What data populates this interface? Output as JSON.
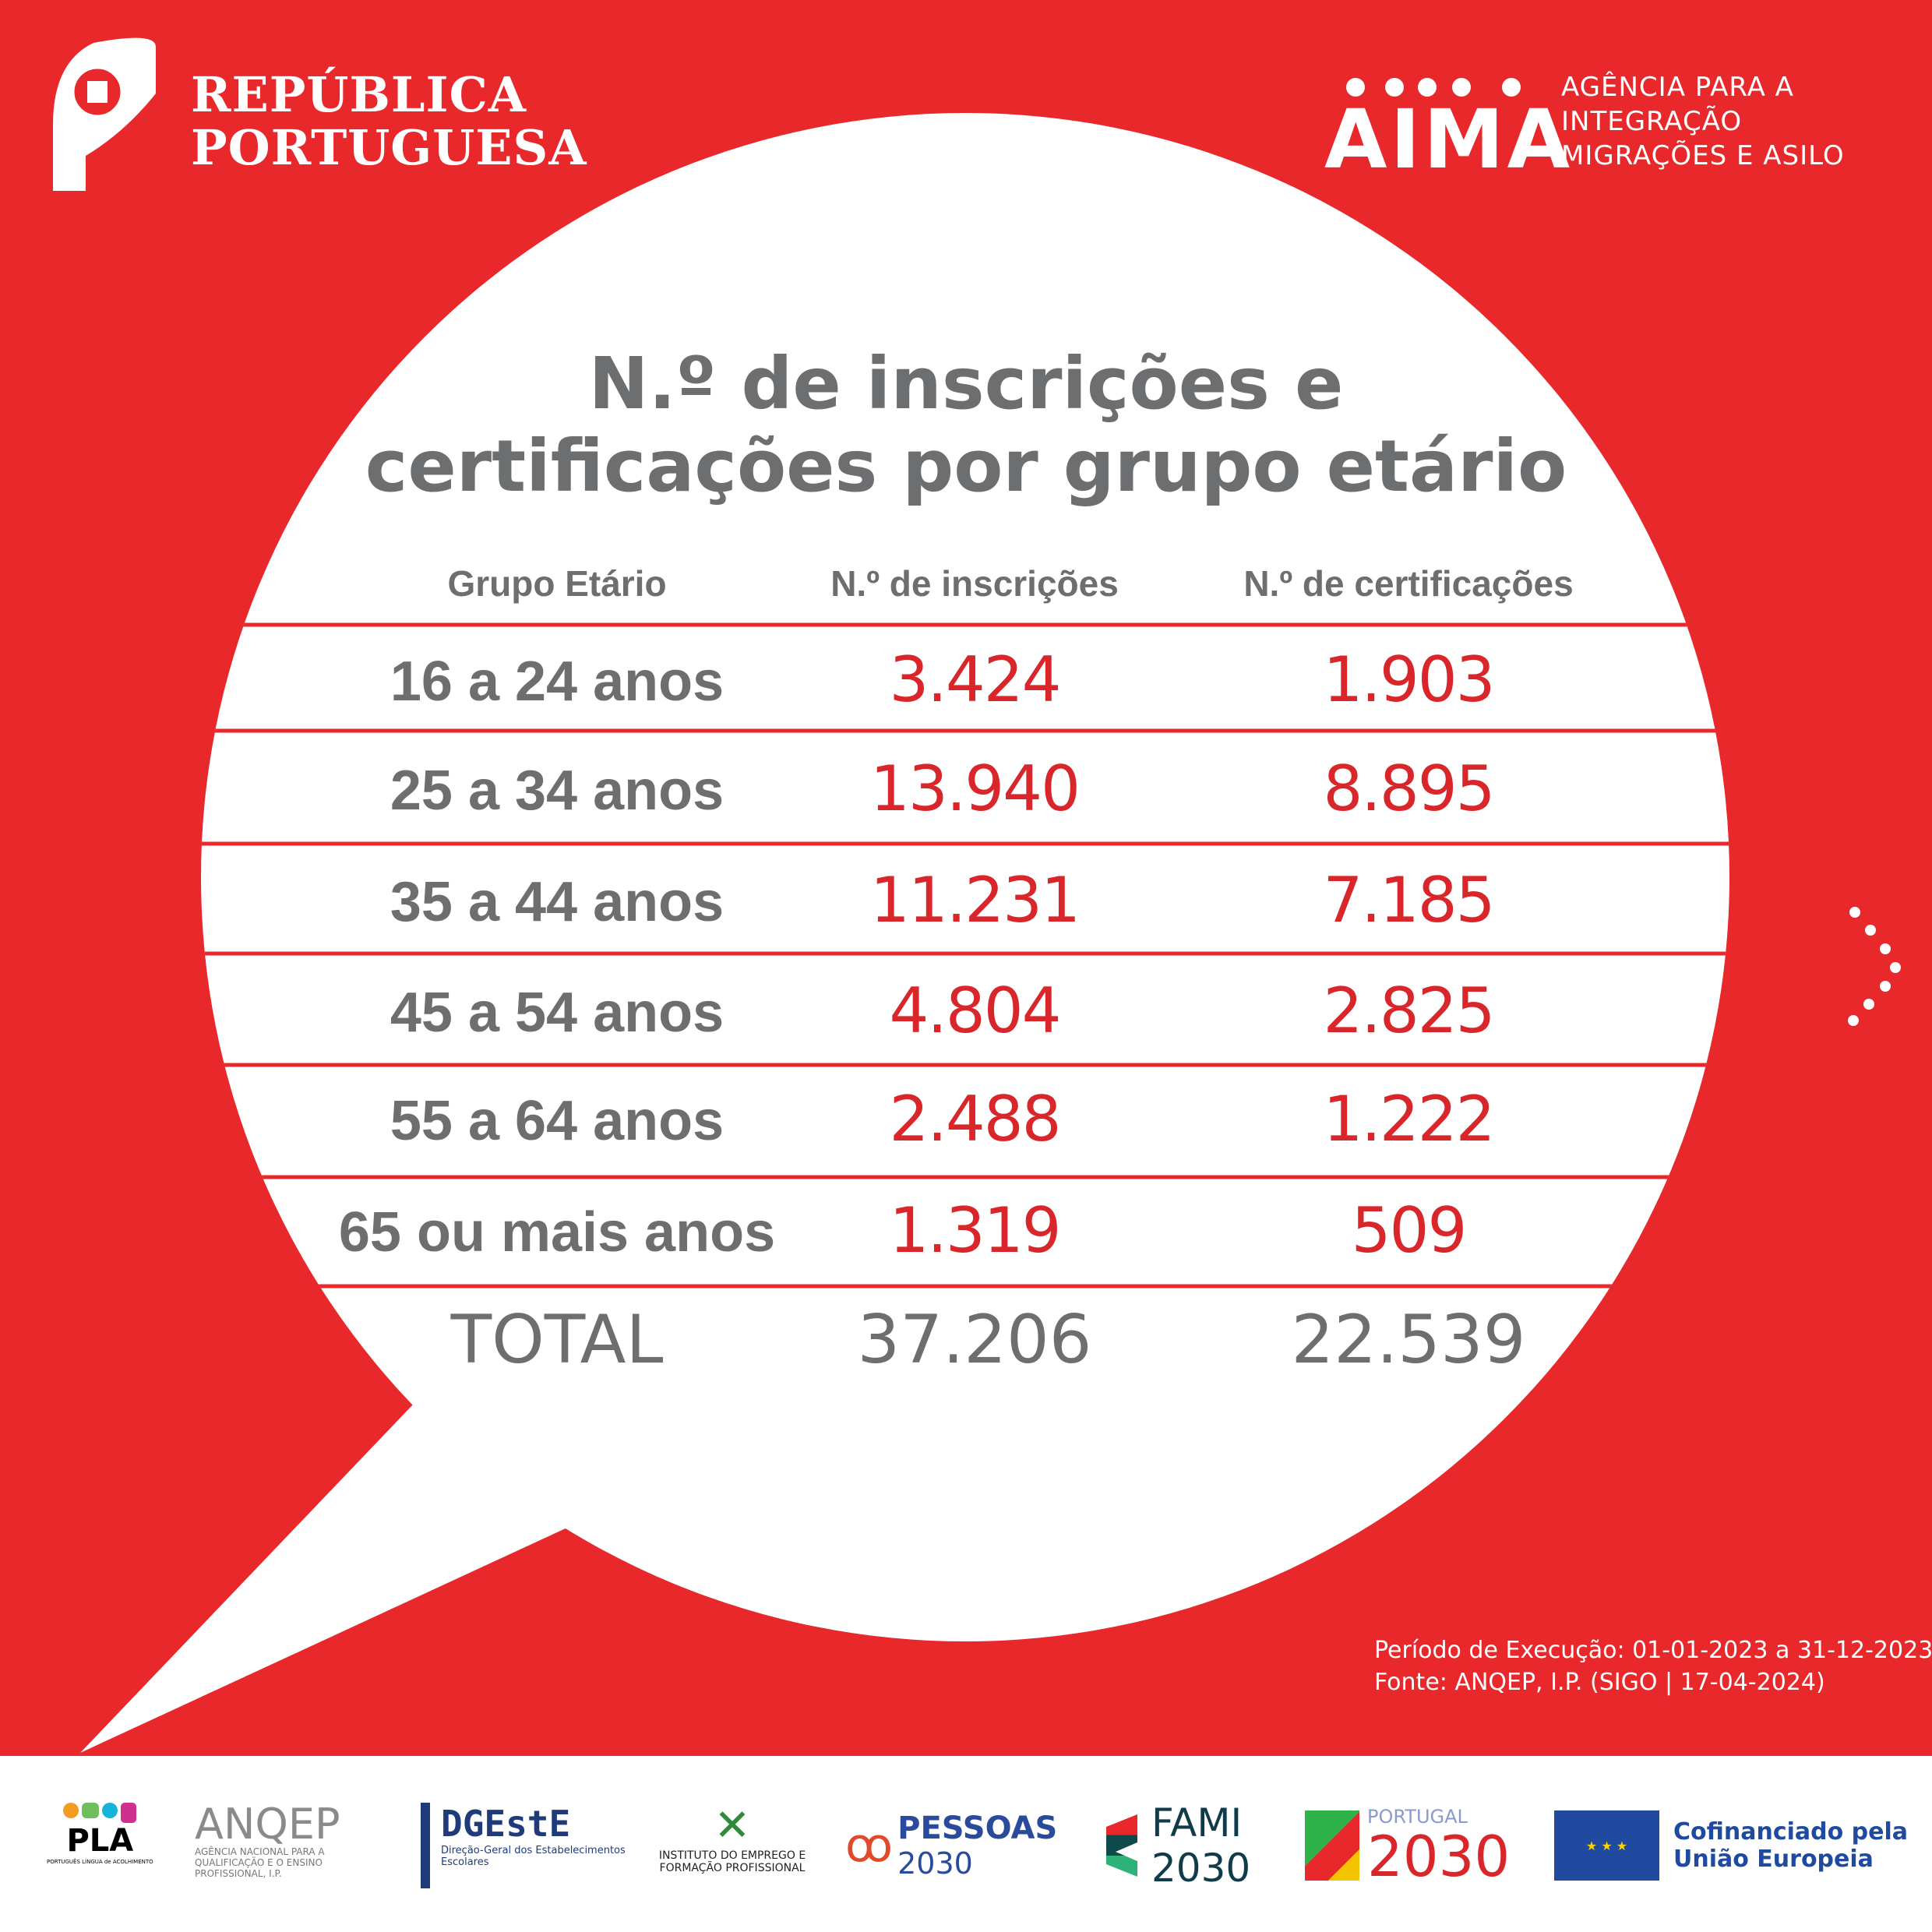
{
  "header": {
    "left_logo": {
      "lines": [
        "REPÚBLICA",
        "PORTUGUESA"
      ],
      "icon": "coat-of-arms-icon"
    },
    "right_logo": {
      "word": "AIMA",
      "lines": [
        "AGÊNCIA PARA A",
        "INTEGRAÇÃO",
        "MIGRAÇÕES E ASILO"
      ]
    }
  },
  "title": [
    "N.º de inscrições e",
    "certificações por grupo etário"
  ],
  "table": {
    "headers": [
      "Grupo Etário",
      "N.º de inscrições",
      "N.º de certificações"
    ],
    "rows": [
      [
        "16 a 24 anos",
        "3.424",
        "1.903"
      ],
      [
        "25 a 34 anos",
        "13.940",
        "8.895"
      ],
      [
        "35 a 44 anos",
        "11.231",
        "7.185"
      ],
      [
        "45 a 54 anos",
        "4.804",
        "2.825"
      ],
      [
        "55 a 64 anos",
        "2.488",
        "1.222"
      ],
      [
        "65 ou mais anos",
        "1.319",
        "509"
      ]
    ],
    "total": [
      "TOTAL",
      "37.206",
      "22.539"
    ]
  },
  "source": [
    "Período de Execução: 01-01-2023 a 31-12-2023",
    "Fonte: ANQEP, I.P. (SIGO | 17-04-2024)"
  ],
  "footer_logos": [
    {
      "name": "PLA",
      "sub": "PORTUGUÊS LÍNGUA de ACOLHIMENTO"
    },
    {
      "name": "ANQEP",
      "sub": "AGÊNCIA NACIONAL PARA A QUALIFICAÇÃO E O ENSINO PROFISSIONAL, I.P."
    },
    {
      "name": "DGEstE",
      "sub": "Direção-Geral dos Estabelecimentos Escolares"
    },
    {
      "name": "",
      "sub": "INSTITUTO DO EMPREGO E FORMAÇÃO PROFISSIONAL"
    },
    {
      "name": "PESSOAS",
      "sub": "2030"
    },
    {
      "name": "FAMI",
      "sub": "2030"
    },
    {
      "name": "PORTUGAL",
      "sub": "2030"
    },
    {
      "name": "Cofinanciado pela",
      "sub": "União Europeia"
    }
  ],
  "colors": {
    "red": "#e8282b",
    "number_red": "#d9262b",
    "gray": "#6d6e70",
    "white": "#ffffff"
  }
}
